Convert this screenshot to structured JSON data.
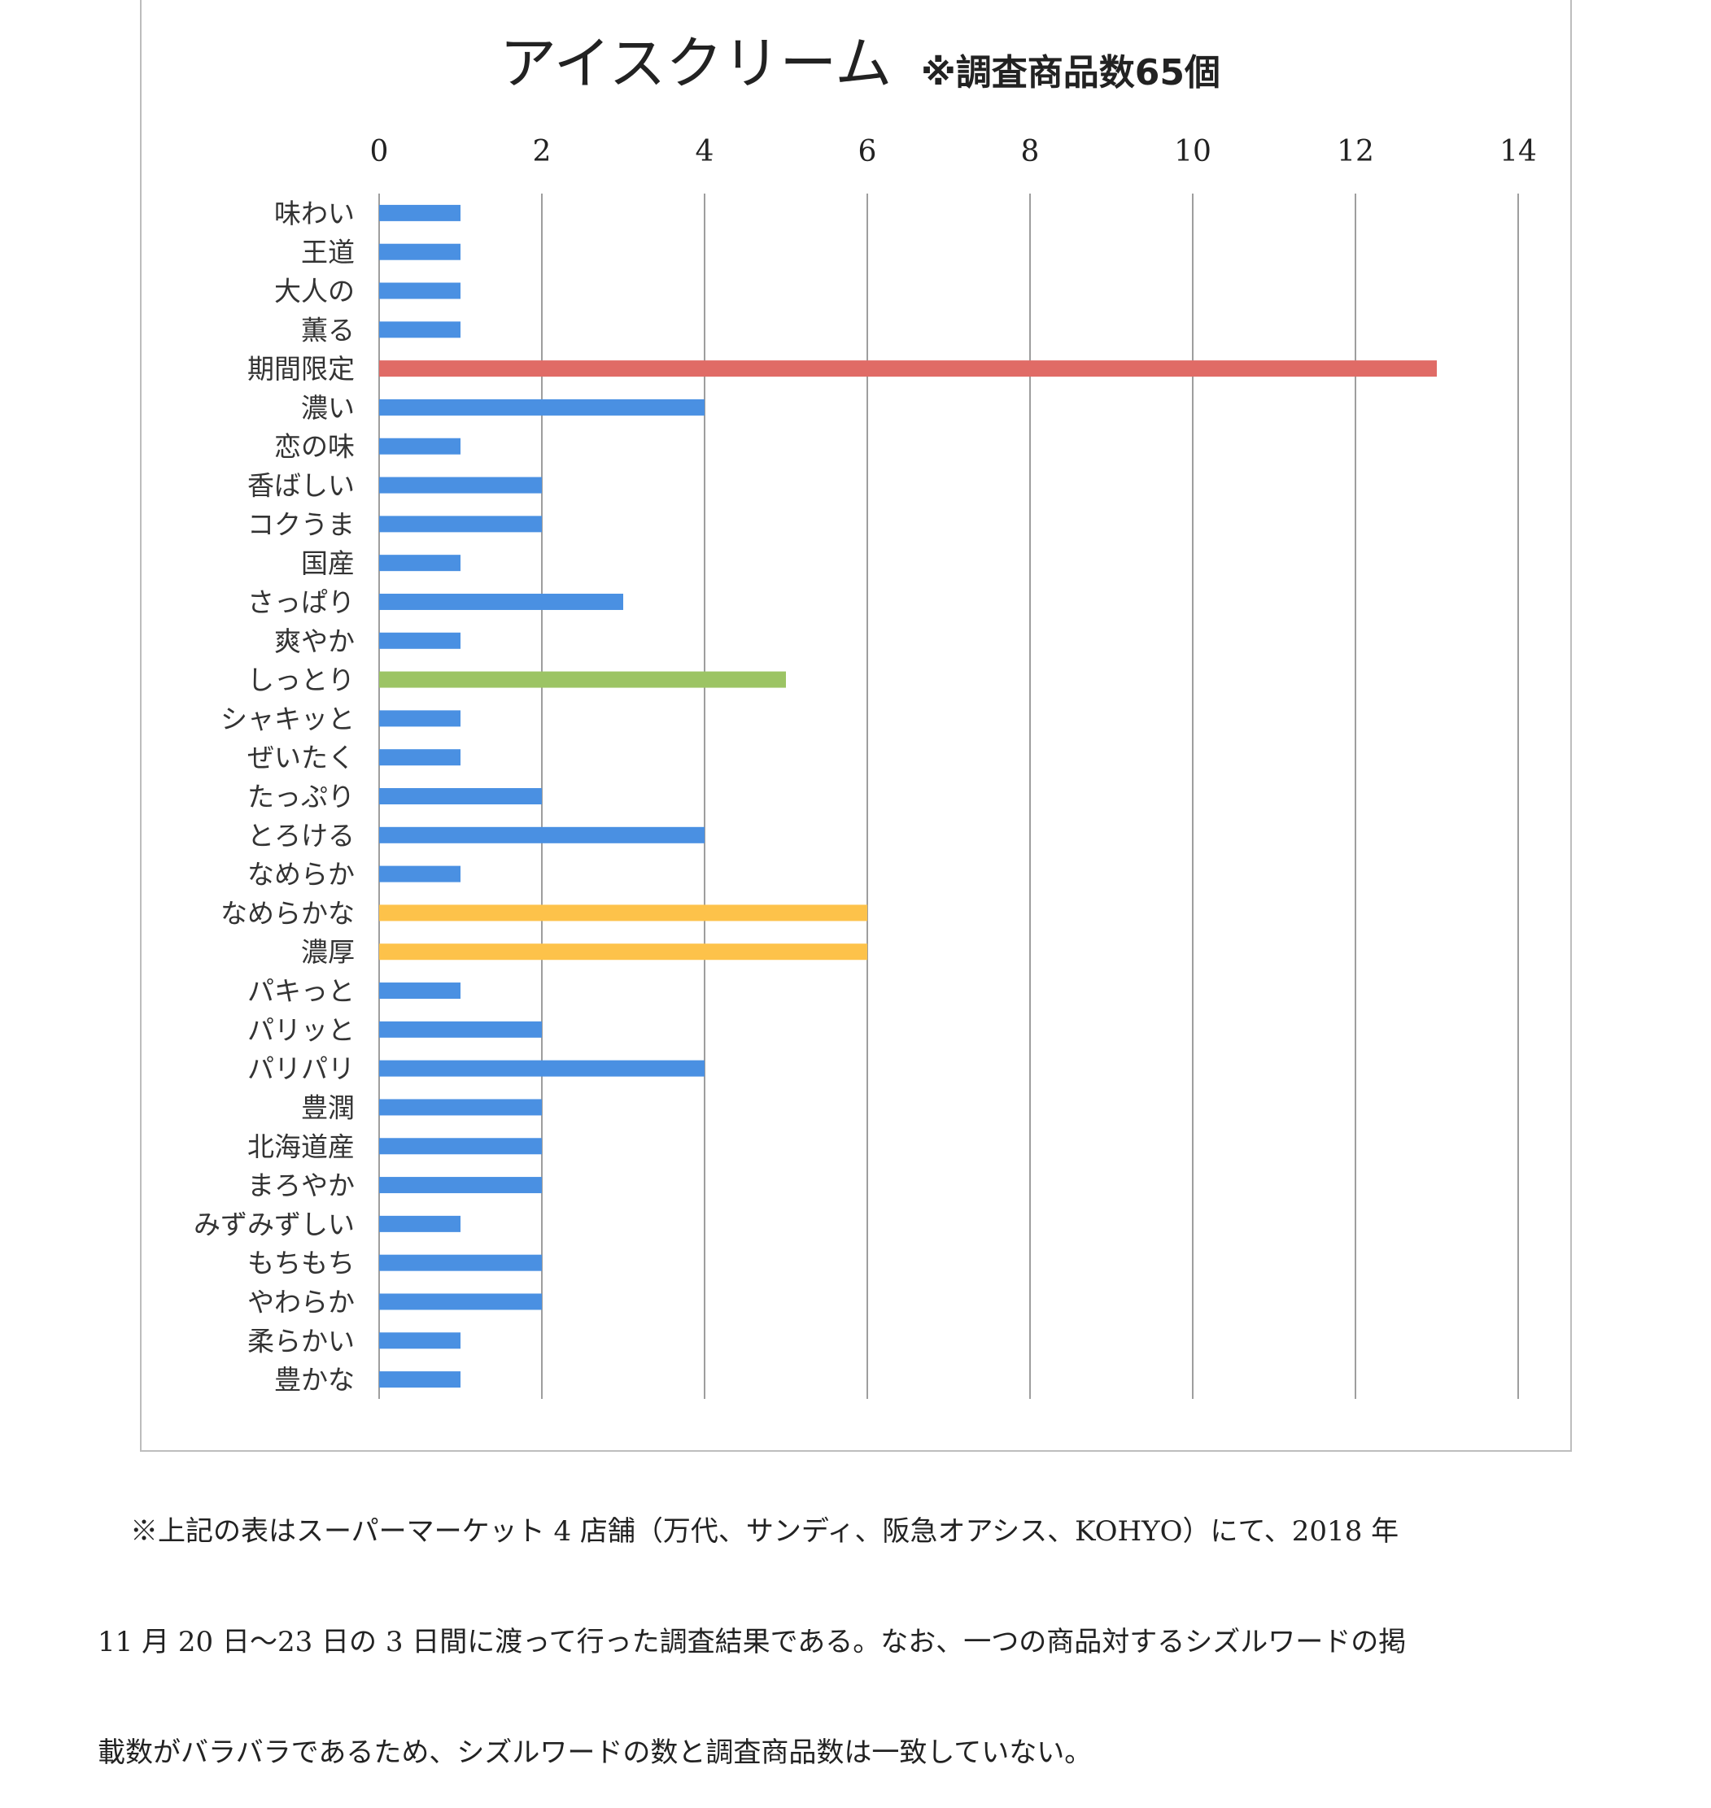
{
  "chart_data": {
    "type": "bar",
    "orientation": "horizontal",
    "title": "アイスクリーム",
    "subtitle": "※調査商品数65個",
    "xlim": [
      0,
      14
    ],
    "xticks": [
      "0",
      "2",
      "4",
      "6",
      "8",
      "10",
      "12",
      "14"
    ],
    "xaxis_position": "top",
    "grid": "vertical",
    "legend": "none",
    "categories": [
      "味わい",
      "王道",
      "大人の",
      "薫る",
      "期間限定",
      "濃い",
      "恋の味",
      "香ばしい",
      "コクうま",
      "国産",
      "さっぱり",
      "爽やか",
      "しっとり",
      "シャキッと",
      "ぜいたく",
      "たっぷり",
      "とろける",
      "なめらか",
      "なめらかな",
      "濃厚",
      "パキっと",
      "パリッと",
      "パリパリ",
      "豊潤",
      "北海道産",
      "まろやか",
      "みずみずしい",
      "もちもち",
      "やわらか",
      "柔らかい",
      "豊かな"
    ],
    "values": [
      1,
      1,
      1,
      1,
      13,
      4,
      1,
      2,
      2,
      1,
      3,
      1,
      5,
      1,
      1,
      2,
      4,
      1,
      6,
      6,
      1,
      2,
      4,
      2,
      2,
      2,
      1,
      2,
      2,
      1,
      1
    ],
    "colors": {
      "default": "#4a90e2",
      "期間限定": "#e06b66",
      "しっとり": "#9cc464",
      "なめらかな": "#fdc24a",
      "濃厚": "#fdc24a"
    }
  },
  "note": {
    "line1": "※上記の表はスーパーマーケット 4 店舗（万代、サンディ、阪急オアシス、KOHYO）にて、2018 年",
    "line2": "11 月 20 日～23 日の 3 日間に渡って行った調査結果である。なお、一つの商品対するシズルワードの掲",
    "line3": "載数がバラバラであるため、シズルワードの数と調査商品数は一致していない。"
  }
}
